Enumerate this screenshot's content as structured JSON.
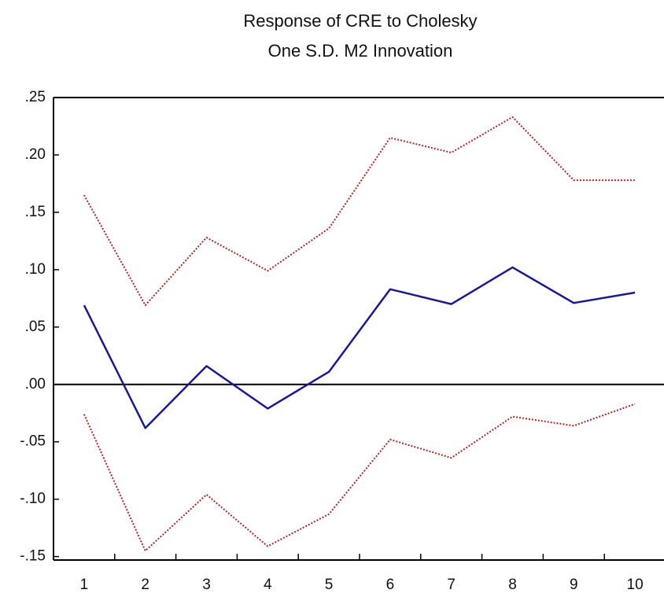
{
  "chart_data": {
    "type": "line",
    "title": "Response of CRE to Cholesky",
    "subtitle": "One S.D. M2 Innovation",
    "categories": [
      "1",
      "2",
      "3",
      "4",
      "5",
      "6",
      "7",
      "8",
      "9",
      "10"
    ],
    "series": [
      {
        "color": "#a52a2a",
        "style": "dotted",
        "values": [
          0.165,
          0.069,
          0.128,
          0.099,
          0.136,
          0.215,
          0.202,
          0.233,
          0.178,
          0.178
        ]
      },
      {
        "color": "#1a1a8c",
        "style": "solid",
        "values": [
          0.069,
          -0.038,
          0.016,
          -0.021,
          0.011,
          0.083,
          0.07,
          0.102,
          0.071,
          0.08
        ]
      },
      {
        "color": "#a52a2a",
        "style": "dotted",
        "values": [
          -0.026,
          -0.145,
          -0.096,
          -0.141,
          -0.113,
          -0.048,
          -0.064,
          -0.028,
          -0.036,
          -0.017
        ]
      }
    ],
    "ylim": [
      -0.153,
      0.25
    ],
    "yticks": [
      {
        "value": 0.25,
        "label": ".25"
      },
      {
        "value": 0.2,
        "label": ".20"
      },
      {
        "value": 0.15,
        "label": ".15"
      },
      {
        "value": 0.1,
        "label": ".10"
      },
      {
        "value": 0.05,
        "label": ".05"
      },
      {
        "value": 0,
        "label": ".00"
      },
      {
        "value": -0.05,
        "label": "-.05"
      },
      {
        "value": -0.1,
        "label": "-.10"
      },
      {
        "value": -0.15,
        "label": "-.15"
      }
    ],
    "zero_line": true,
    "grid": false
  }
}
